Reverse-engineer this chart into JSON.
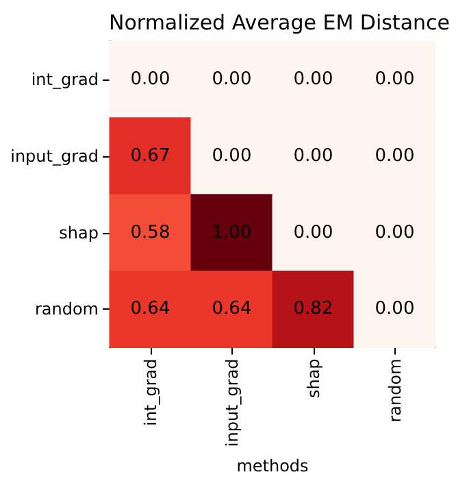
{
  "chart_data": {
    "type": "heatmap",
    "title": "Normalized Average EM Distance",
    "xlabel": "methods",
    "categories": [
      "int_grad",
      "input_grad",
      "shap",
      "random"
    ],
    "y_categories": [
      "int_grad",
      "input_grad",
      "shap",
      "random"
    ],
    "cells": [
      [
        0.0,
        0.0,
        0.0,
        0.0
      ],
      [
        0.67,
        0.0,
        0.0,
        0.0
      ],
      [
        0.58,
        1.0,
        0.0,
        0.0
      ],
      [
        0.64,
        0.64,
        0.82,
        0.0
      ]
    ],
    "cell_labels": [
      [
        "0.00",
        "0.00",
        "0.00",
        "0.00"
      ],
      [
        "0.67",
        "0.00",
        "0.00",
        "0.00"
      ],
      [
        "0.58",
        "1.00",
        "0.00",
        "0.00"
      ],
      [
        "0.64",
        "0.64",
        "0.82",
        "0.00"
      ]
    ]
  }
}
